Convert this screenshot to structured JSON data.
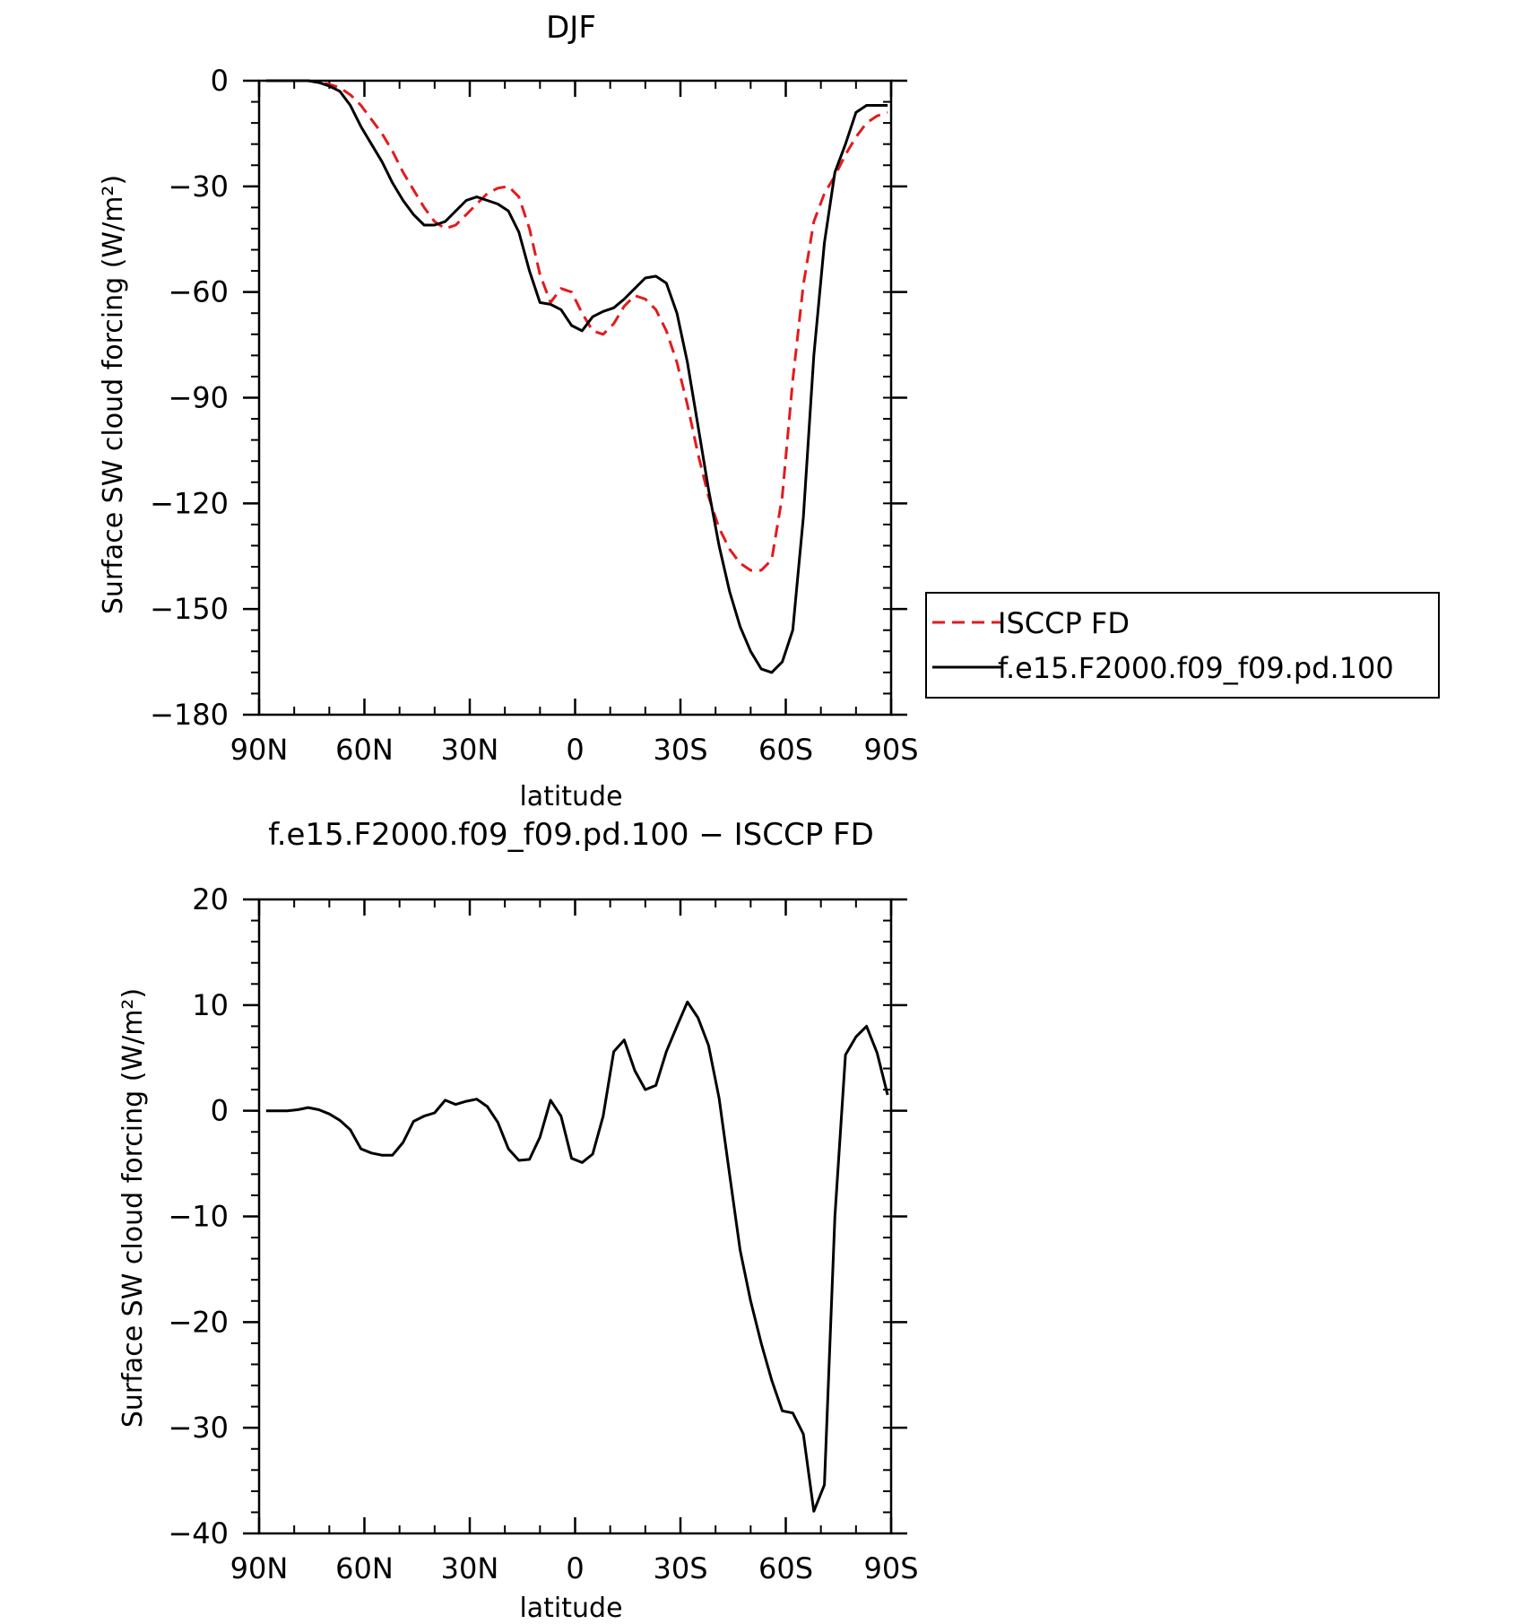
{
  "chart_data": [
    {
      "type": "line",
      "title": "DJF",
      "xlabel": "latitude",
      "ylabel": "Surface SW cloud forcing (W/m²)",
      "xlim": [
        90,
        -90
      ],
      "ylim": [
        -180,
        0
      ],
      "x_ticks": [
        90,
        60,
        30,
        0,
        -30,
        -60,
        -90
      ],
      "x_tick_labels": [
        "90N",
        "60N",
        "30N",
        "0",
        "30S",
        "60S",
        "90S"
      ],
      "y_ticks": [
        0,
        -30,
        -60,
        -90,
        -120,
        -150,
        -180
      ],
      "y_tick_labels": [
        "0",
        "−30",
        "−60",
        "−90",
        "−120",
        "−150",
        "−180"
      ],
      "legend": {
        "placement": "right",
        "entries": [
          "ISCCP FD",
          "f.e15.F2000.f09_f09.pd.100"
        ]
      },
      "series": [
        {
          "name": "ISCCP FD",
          "color": "#e41a1c",
          "dash": "dashed",
          "x": [
            88,
            85,
            82,
            79,
            76,
            73,
            70,
            67,
            64,
            61,
            58,
            55,
            52,
            49,
            46,
            43,
            40,
            37,
            34,
            31,
            28,
            25,
            22,
            19,
            16,
            13,
            10,
            7,
            4,
            1,
            -2,
            -5,
            -8,
            -11,
            -14,
            -17,
            -20,
            -23,
            -26,
            -29,
            -32,
            -35,
            -38,
            -41,
            -44,
            -47,
            -50,
            -53,
            -56,
            -59,
            -62,
            -65,
            -68,
            -71,
            -74,
            -77,
            -80,
            -83,
            -86,
            -89
          ],
          "y": [
            0,
            0,
            0,
            0,
            0,
            -0.5,
            -1,
            -2,
            -4,
            -7,
            -11,
            -15,
            -20,
            -26,
            -31,
            -36,
            -40,
            -42,
            -41,
            -38,
            -35,
            -32,
            -30.5,
            -30,
            -33,
            -42,
            -55,
            -63,
            -59,
            -60,
            -66,
            -71,
            -72,
            -69,
            -64,
            -61,
            -62,
            -65,
            -71,
            -80,
            -92,
            -106,
            -118,
            -127,
            -133,
            -137,
            -139,
            -139,
            -136,
            -118,
            -85,
            -58,
            -40,
            -32,
            -27,
            -21,
            -16,
            -12,
            -10,
            -9
          ]
        },
        {
          "name": "f.e15.F2000.f09_f09.pd.100",
          "color": "#000000",
          "dash": "solid",
          "x": [
            88,
            85,
            82,
            79,
            76,
            73,
            70,
            67,
            64,
            61,
            58,
            55,
            52,
            49,
            46,
            43,
            40,
            37,
            34,
            31,
            28,
            25,
            22,
            19,
            16,
            13,
            10,
            7,
            4,
            1,
            -2,
            -5,
            -8,
            -11,
            -14,
            -17,
            -20,
            -23,
            -26,
            -29,
            -32,
            -35,
            -38,
            -41,
            -44,
            -47,
            -50,
            -53,
            -56,
            -59,
            -62,
            -65,
            -68,
            -71,
            -74,
            -77,
            -80,
            -83,
            -86,
            -89
          ],
          "y": [
            0,
            0,
            0,
            0,
            0,
            -0.5,
            -1.5,
            -3,
            -7,
            -13,
            -18,
            -23,
            -29,
            -34,
            -38,
            -41,
            -41,
            -40,
            -37,
            -34,
            -33,
            -34,
            -35,
            -37,
            -43,
            -54,
            -63,
            -63.5,
            -65,
            -69.5,
            -71,
            -67,
            -65.5,
            -64.5,
            -62,
            -59,
            -56,
            -55.5,
            -57.5,
            -66,
            -80,
            -98,
            -116,
            -132,
            -145,
            -155,
            -162,
            -167,
            -168,
            -165,
            -156,
            -124,
            -78,
            -46,
            -26,
            -18,
            -9,
            -7,
            -7,
            -7
          ]
        }
      ]
    },
    {
      "type": "line",
      "title": "f.e15.F2000.f09_f09.pd.100 − ISCCP FD",
      "xlabel": "latitude",
      "ylabel": "Surface SW cloud forcing (W/m²)",
      "xlim": [
        90,
        -90
      ],
      "ylim": [
        -40,
        20
      ],
      "x_ticks": [
        90,
        60,
        30,
        0,
        -30,
        -60,
        -90
      ],
      "x_tick_labels": [
        "90N",
        "60N",
        "30N",
        "0",
        "30S",
        "60S",
        "90S"
      ],
      "y_ticks": [
        20,
        10,
        0,
        -10,
        -20,
        -30,
        -40
      ],
      "y_tick_labels": [
        "20",
        "10",
        "0",
        "−10",
        "−20",
        "−30",
        "−40"
      ],
      "series": [
        {
          "color": "#000000",
          "dash": "solid",
          "x": [
            88,
            85,
            82,
            79,
            76,
            73,
            70,
            67,
            64,
            61,
            58,
            55,
            52,
            49,
            46,
            43,
            40,
            37,
            34,
            31,
            28,
            25,
            22,
            19,
            16,
            13,
            10,
            7,
            4,
            1,
            -2,
            -5,
            -8,
            -11,
            -14,
            -17,
            -20,
            -23,
            -26,
            -29,
            -32,
            -35,
            -38,
            -41,
            -44,
            -47,
            -50,
            -53,
            -56,
            -59,
            -62,
            -65,
            -68,
            -71,
            -74,
            -77,
            -80,
            -83,
            -86,
            -89
          ],
          "y": [
            0,
            0,
            0,
            0.1,
            0.3,
            0.1,
            -0.3,
            -0.9,
            -1.8,
            -3.6,
            -4.0,
            -4.2,
            -4.2,
            -3.0,
            -1.0,
            -0.5,
            -0.2,
            1.0,
            0.6,
            0.9,
            1.1,
            0.4,
            -1.1,
            -3.6,
            -4.7,
            -4.6,
            -2.5,
            1.0,
            -0.5,
            -4.5,
            -4.9,
            -4.1,
            -0.5,
            5.6,
            6.7,
            3.8,
            2.0,
            2.4,
            5.6,
            8.0,
            10.3,
            8.8,
            6.2,
            1.2,
            -6.0,
            -13.2,
            -18.0,
            -22.0,
            -25.5,
            -28.4,
            -28.6,
            -30.6,
            -37.9,
            -35.4,
            -10.0,
            5.3,
            7.0,
            8.0,
            5.5,
            1.5
          ]
        }
      ]
    }
  ]
}
